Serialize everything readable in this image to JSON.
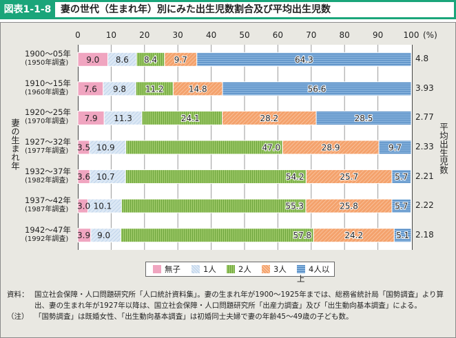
{
  "header": {
    "figure_number": "図表1-1-8",
    "title": "妻の世代（生まれ年）別にみた出生児数割合及び平均出生児数"
  },
  "colors": {
    "header_bg": "#1aa57a",
    "none": "#f0a5c0",
    "one": "#cfe0f2",
    "two": "#8dbf58",
    "three": "#f29a5c",
    "four_plus": "#7aaad8"
  },
  "chart_data": {
    "type": "bar",
    "orientation": "horizontal",
    "stacked": true,
    "title": "妻の世代（生まれ年）別にみた出生児数割合及び平均出生児数",
    "xlabel": "(%)",
    "ylabel": "妻の生まれ年",
    "right_label": "平均出生児数",
    "xlim": [
      0,
      100
    ],
    "x_ticks": [
      "0",
      "10",
      "20",
      "30",
      "40",
      "50",
      "60",
      "70",
      "80",
      "90",
      "100"
    ],
    "grid": true,
    "legend_position": "bottom",
    "categories": [
      {
        "years": "1900〜05年",
        "survey": "(1950年調査)"
      },
      {
        "years": "1910〜15年",
        "survey": "(1960年調査)"
      },
      {
        "years": "1920〜25年",
        "survey": "(1970年調査)"
      },
      {
        "years": "1927〜32年",
        "survey": "(1977年調査)"
      },
      {
        "years": "1932〜37年",
        "survey": "(1982年調査)"
      },
      {
        "years": "1937〜42年",
        "survey": "(1987年調査)"
      },
      {
        "years": "1942〜47年",
        "survey": "(1992年調査)"
      }
    ],
    "series": [
      {
        "name": "無子",
        "key": "none",
        "values": [
          9.0,
          7.6,
          7.9,
          3.5,
          3.6,
          3.0,
          3.9
        ]
      },
      {
        "name": "1人",
        "key": "one",
        "values": [
          8.6,
          9.8,
          11.3,
          10.9,
          10.7,
          10.1,
          9.0
        ]
      },
      {
        "name": "2人",
        "key": "two",
        "values": [
          8.4,
          11.2,
          24.1,
          47.0,
          54.2,
          55.3,
          57.8
        ]
      },
      {
        "name": "3人",
        "key": "three",
        "values": [
          9.7,
          14.8,
          28.2,
          28.9,
          25.7,
          25.8,
          24.2
        ]
      },
      {
        "name": "4人以上",
        "key": "four_plus",
        "values": [
          64.3,
          56.6,
          28.5,
          9.7,
          5.7,
          5.7,
          5.1
        ]
      }
    ],
    "average_children": [
      "4.8",
      "3.93",
      "2.77",
      "2.33",
      "2.21",
      "2.22",
      "2.18"
    ]
  },
  "notes": {
    "source_label": "資料：",
    "source_text": "国立社会保障・人口問題研究所「人口統計資料集」。妻の生まれ年が1900〜1925年までは、総務省統計局「国勢調査」より算出、妻の生まれ年が1927年以降は、国立社会保障・人口問題研究所「出産力調査」及び「出生動向基本調査」による。",
    "note_label": "（注）",
    "note_text": "「国勢調査」は既婚女性、「出生動向基本調査」は初婚同士夫婦で妻の年齢45〜49歳の子ども数。"
  }
}
